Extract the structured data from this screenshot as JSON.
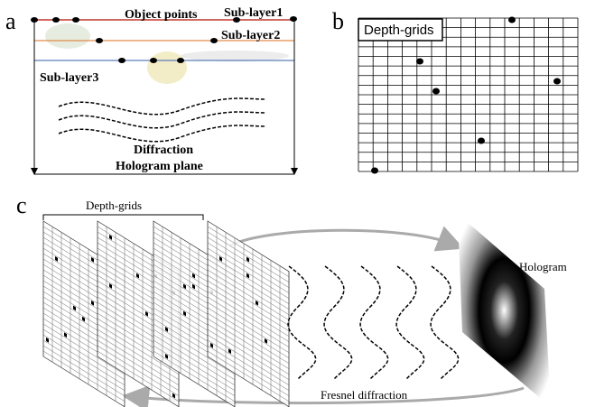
{
  "panel_a": {
    "label": "a",
    "object_points": "Object points",
    "sub_layer_1": "Sub-layer1",
    "sub_layer_2": "Sub-layer2",
    "sub_layer_3": "Sub-layer3",
    "diffraction": "Diffraction",
    "hologram_plane": "Hologram plane"
  },
  "panel_b": {
    "label": "b",
    "title": "Depth-grids"
  },
  "panel_c": {
    "label": "c",
    "depth_grids": "Depth-grids",
    "hologram": "Hologram",
    "fresnel_diffraction": "Fresnel diffraction"
  }
}
